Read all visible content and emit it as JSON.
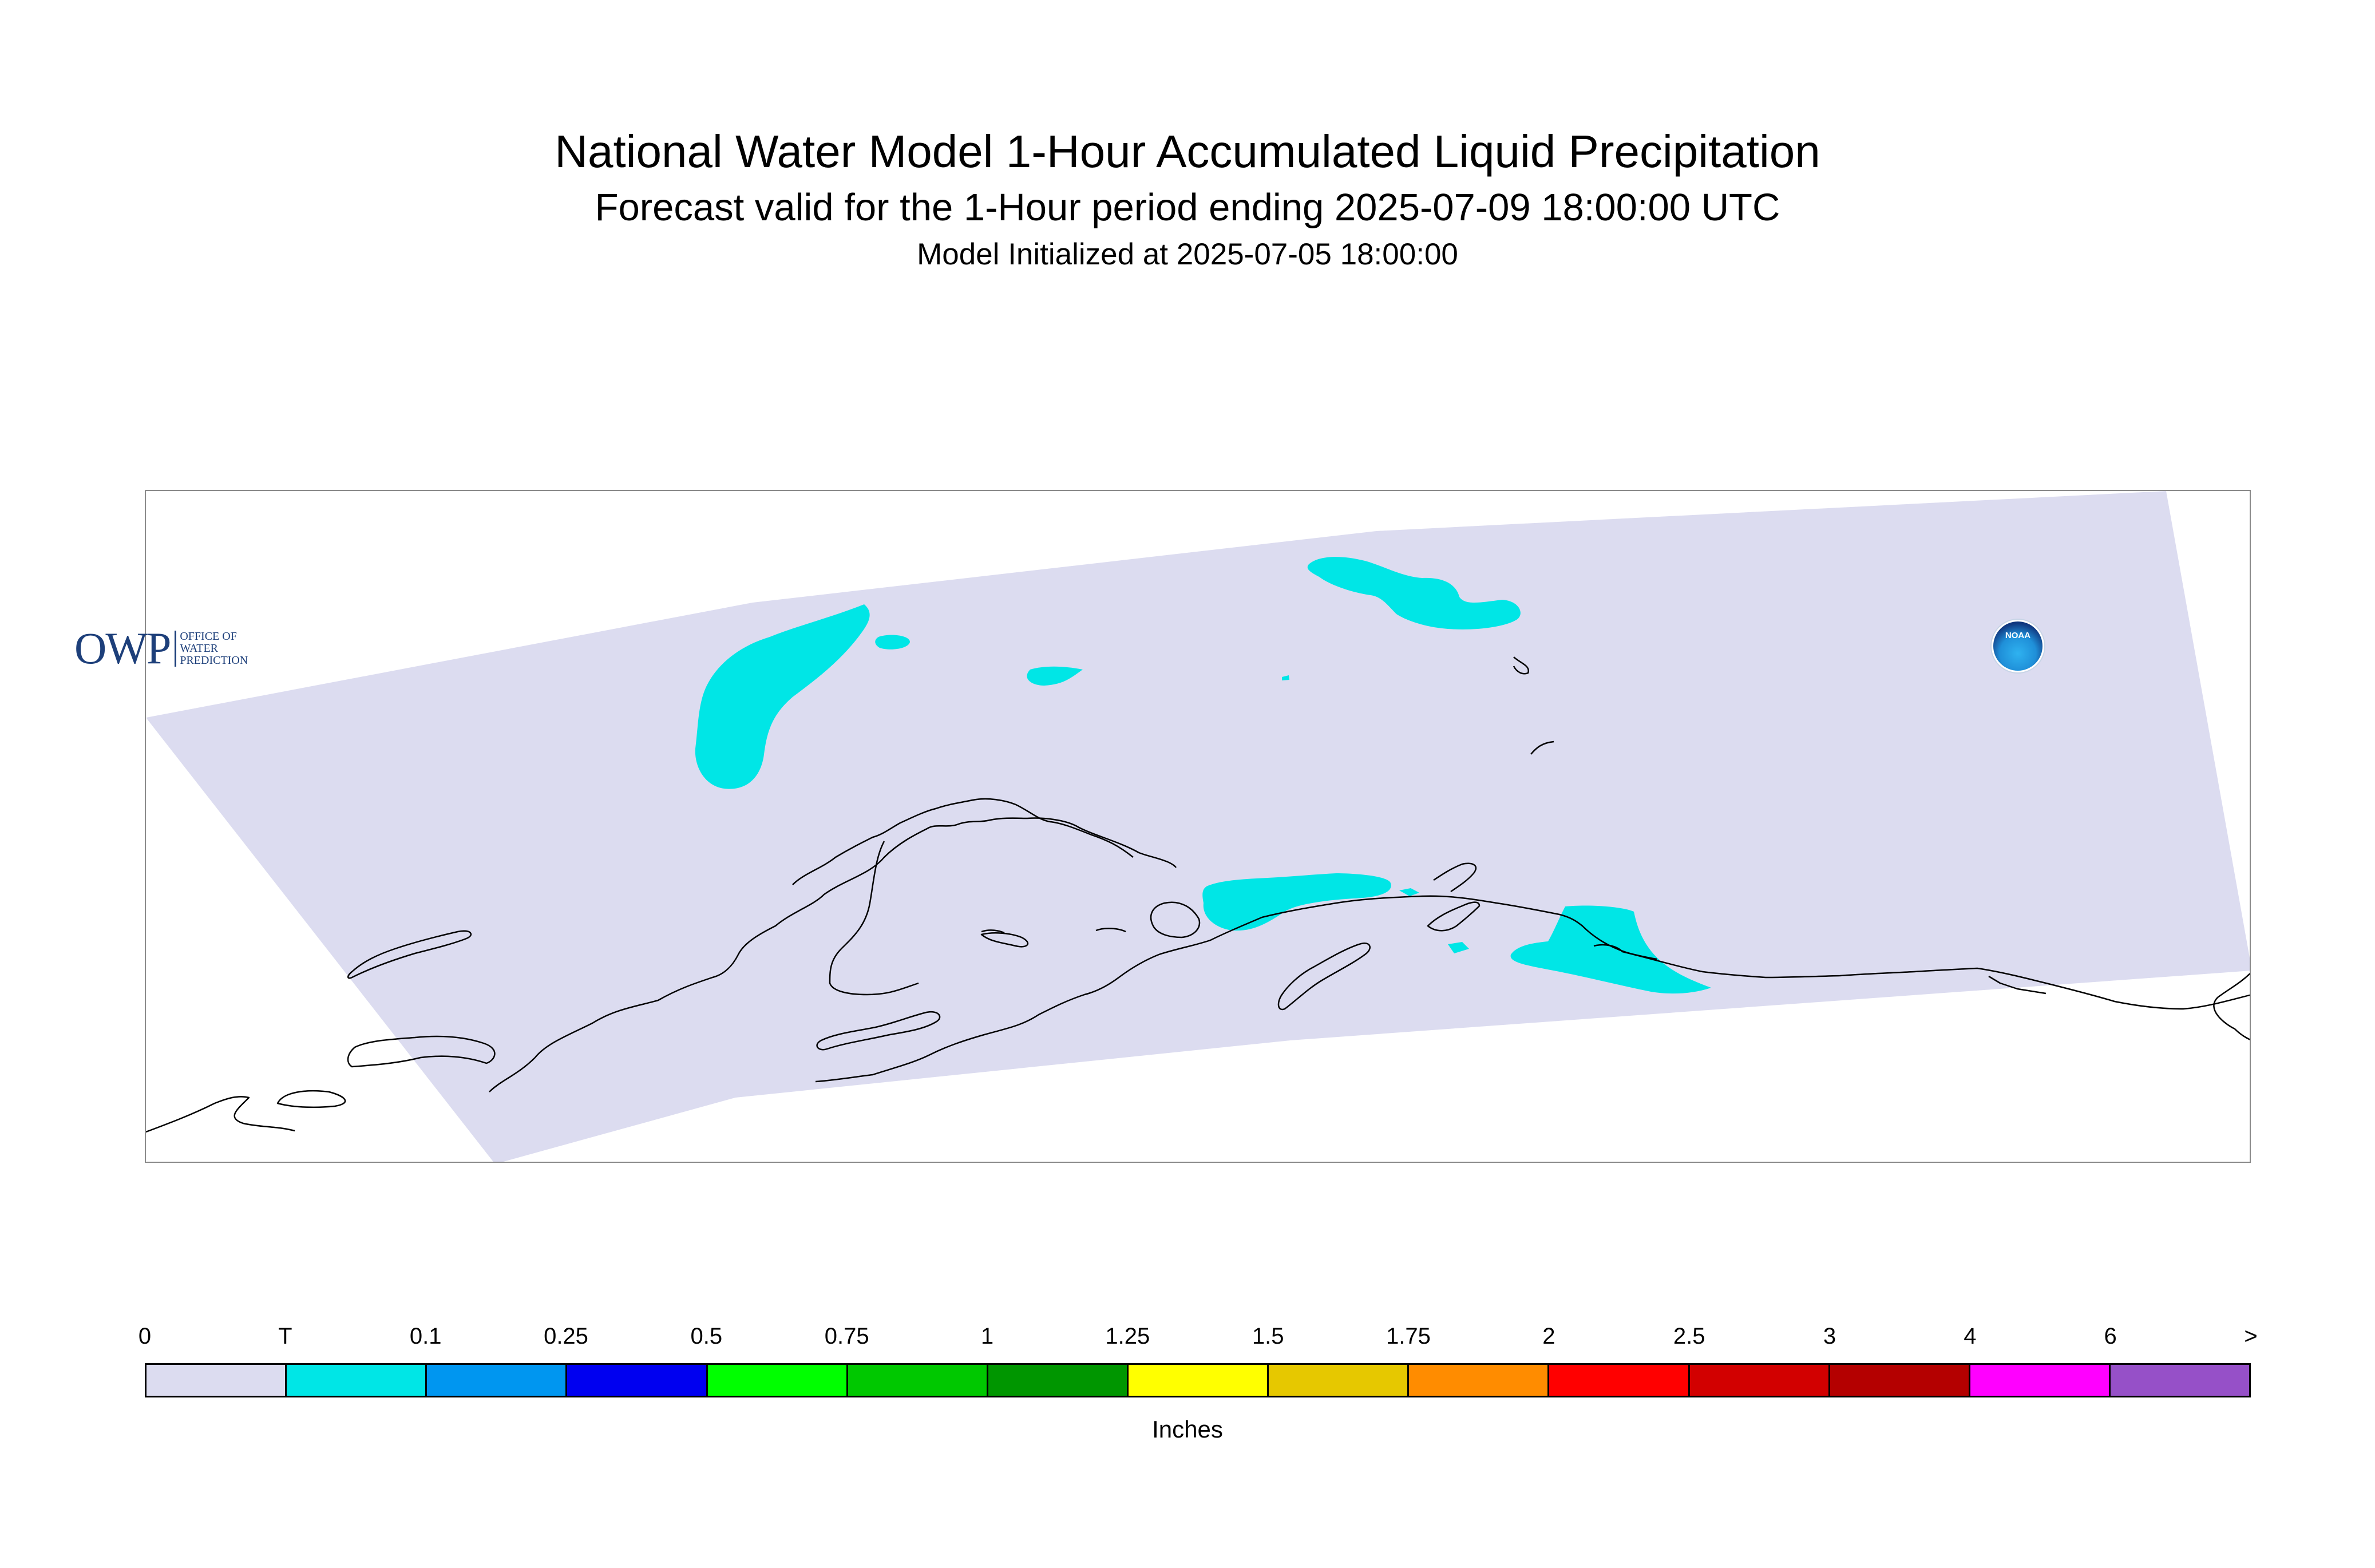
{
  "header": {
    "title": "National Water Model 1-Hour Accumulated Liquid Precipitation",
    "subtitle": "Forecast valid for the 1-Hour period ending 2025-07-09 18:00:00 UTC",
    "init": "Model Initialized at 2025-07-05 18:00:00"
  },
  "map": {
    "domain_fill": "#dcdcf0",
    "precip_fill": "#00e6e6",
    "coastline_color": "#000000",
    "frame_color": "#8a8a8a"
  },
  "logos": {
    "owp": {
      "word": "OWP",
      "line1": "OFFICE OF",
      "line2": "WATER",
      "line3": "PREDICTION"
    },
    "noaa": {
      "text": "NOAA"
    }
  },
  "legend": {
    "labels": [
      "0",
      "T",
      "0.1",
      "0.25",
      "0.5",
      "0.75",
      "1",
      "1.25",
      "1.5",
      "1.75",
      "2",
      "2.5",
      "3",
      "4",
      "6",
      ">"
    ],
    "colors": [
      "#dcdcf0",
      "#00e6e6",
      "#0096f0",
      "#0000f0",
      "#00ff00",
      "#00c800",
      "#009600",
      "#ffff00",
      "#e6c800",
      "#ff8c00",
      "#ff0000",
      "#d20000",
      "#b40000",
      "#ff00ff",
      "#9650c8"
    ],
    "units": "Inches"
  }
}
